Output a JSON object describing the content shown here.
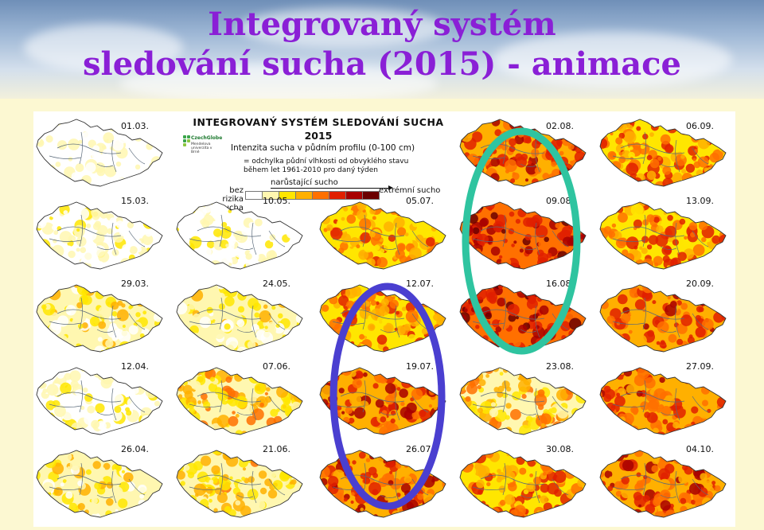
{
  "slide": {
    "title_line1": "Integrovaný systém",
    "title_line2": "sledování sucha (2015) - animace"
  },
  "legend": {
    "title": "INTEGROVANÝ SYSTÉM SLEDOVÁNÍ SUCHA",
    "year": "2015",
    "subtitle": "Intenzita sucha v půdním profilu (0-100 cm)",
    "description": "= odchylka půdní vlhkosti od obvyklého stavu během let 1961-2010 pro daný týden",
    "arrow_label": "narůstající sucho",
    "left_label": "bez rizika sucha",
    "right_label": "extrémní sucho",
    "logo_brand": "CzechGlobe",
    "logo_small": "Mendelova univerzita v Brně",
    "swatch_colors": [
      "#ffffff",
      "#fff7b0",
      "#ffe600",
      "#ffb000",
      "#ff7000",
      "#e02000",
      "#a80000",
      "#6b0000"
    ]
  },
  "maps": [
    {
      "date": "01.03.",
      "col": 0,
      "row": 0,
      "level": 0
    },
    {
      "date": "15.03.",
      "col": 0,
      "row": 1,
      "level": 0.5
    },
    {
      "date": "29.03.",
      "col": 0,
      "row": 2,
      "level": 1.5
    },
    {
      "date": "12.04.",
      "col": 0,
      "row": 3,
      "level": 0.5
    },
    {
      "date": "26.04.",
      "col": 0,
      "row": 4,
      "level": 1.5
    },
    {
      "date": "10.05.",
      "col": 1,
      "row": 1,
      "level": 0.7
    },
    {
      "date": "24.05.",
      "col": 1,
      "row": 2,
      "level": 1.3
    },
    {
      "date": "07.06.",
      "col": 1,
      "row": 3,
      "level": 2.5
    },
    {
      "date": "21.06.",
      "col": 1,
      "row": 4,
      "level": 2.2
    },
    {
      "date": "05.07.",
      "col": 2,
      "row": 1,
      "level": 3.2
    },
    {
      "date": "12.07.",
      "col": 2,
      "row": 2,
      "level": 3.8
    },
    {
      "date": "19.07.",
      "col": 2,
      "row": 3,
      "level": 4.5
    },
    {
      "date": "26.07.",
      "col": 2,
      "row": 4,
      "level": 4.6
    },
    {
      "date": "02.08.",
      "col": 3,
      "row": 0,
      "level": 4.6
    },
    {
      "date": "09.08.",
      "col": 3,
      "row": 1,
      "level": 5.5
    },
    {
      "date": "16.08.",
      "col": 3,
      "row": 2,
      "level": 5.6
    },
    {
      "date": "23.08.",
      "col": 3,
      "row": 3,
      "level": 2.6
    },
    {
      "date": "30.08.",
      "col": 3,
      "row": 4,
      "level": 3.8
    },
    {
      "date": "06.09.",
      "col": 4,
      "row": 0,
      "level": 3.8
    },
    {
      "date": "13.09.",
      "col": 4,
      "row": 1,
      "level": 3.8
    },
    {
      "date": "20.09.",
      "col": 4,
      "row": 2,
      "level": 4.2
    },
    {
      "date": "27.09.",
      "col": 4,
      "row": 3,
      "level": 4.2
    },
    {
      "date": "04.10.",
      "col": 4,
      "row": 4,
      "level": 4.3
    }
  ],
  "highlights": {
    "blue_color": "#4a3fd0",
    "green_color": "#2fc4a0"
  }
}
